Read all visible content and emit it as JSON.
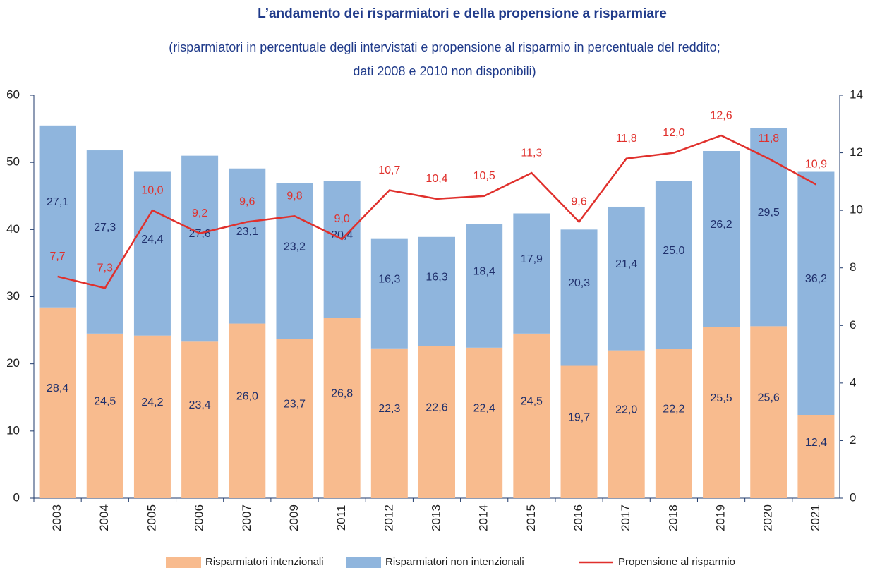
{
  "chart_data": {
    "type": "bar",
    "title": "L’andamento dei risparmiatori e della propensione a risparmiare",
    "subtitle": [
      "(risparmiatori in percentuale degli intervistati e propensione al risparmio in percentuale del reddito;",
      "dati 2008 e 2010 non disponibili)"
    ],
    "categories": [
      "2003",
      "2004",
      "2005",
      "2006",
      "2007",
      "2009",
      "2011",
      "2012",
      "2013",
      "2014",
      "2015",
      "2016",
      "2017",
      "2018",
      "2019",
      "2020",
      "2021"
    ],
    "stacked": true,
    "series": [
      {
        "name": "Risparmiatori intenzionali",
        "type": "bar",
        "color": "#f8bb8e",
        "values": [
          28.4,
          24.5,
          24.2,
          23.4,
          26.0,
          23.7,
          26.8,
          22.3,
          22.6,
          22.4,
          24.5,
          19.7,
          22.0,
          22.2,
          25.5,
          25.6,
          12.4
        ],
        "value_labels": [
          "28,4",
          "24,5",
          "24,2",
          "23,4",
          "26,0",
          "23,7",
          "26,8",
          "22,3",
          "22,6",
          "22,4",
          "24,5",
          "19,7",
          "22,0",
          "22,2",
          "25,5",
          "25,6",
          "12,4"
        ]
      },
      {
        "name": "Risparmiatori non intenzionali",
        "type": "bar",
        "color": "#8fb5dd",
        "values": [
          27.1,
          27.3,
          24.4,
          27.6,
          23.1,
          23.2,
          20.4,
          16.3,
          16.3,
          18.4,
          17.9,
          20.3,
          21.4,
          25.0,
          26.2,
          29.5,
          36.2
        ],
        "value_labels": [
          "27,1",
          "27,3",
          "24,4",
          "27,6",
          "23,1",
          "23,2",
          "20,4",
          "16,3",
          "16,3",
          "18,4",
          "17,9",
          "20,3",
          "21,4",
          "25,0",
          "26,2",
          "29,5",
          "36,2"
        ]
      },
      {
        "name": "Propensione al risparmio",
        "type": "line",
        "axis": "y2",
        "color": "#e0302c",
        "values": [
          7.7,
          7.3,
          10.0,
          9.2,
          9.6,
          9.8,
          9.0,
          10.7,
          10.4,
          10.5,
          11.3,
          9.6,
          11.8,
          12.0,
          12.6,
          11.8,
          10.9
        ],
        "value_labels": [
          "7,7",
          "7,3",
          "10,0",
          "9,2",
          "9,6",
          "9,8",
          "9,0",
          "10,7",
          "10,4",
          "10,5",
          "11,3",
          "9,6",
          "11,8",
          "12,0",
          "12,6",
          "11,8",
          "10,9"
        ]
      }
    ],
    "ylim": [
      0,
      60
    ],
    "yticks": [
      0,
      10,
      20,
      30,
      40,
      50,
      60
    ],
    "y2lim": [
      0,
      14
    ],
    "y2ticks": [
      0,
      2,
      4,
      6,
      8,
      10,
      12,
      14
    ],
    "grid": false,
    "legend": "bottom"
  }
}
